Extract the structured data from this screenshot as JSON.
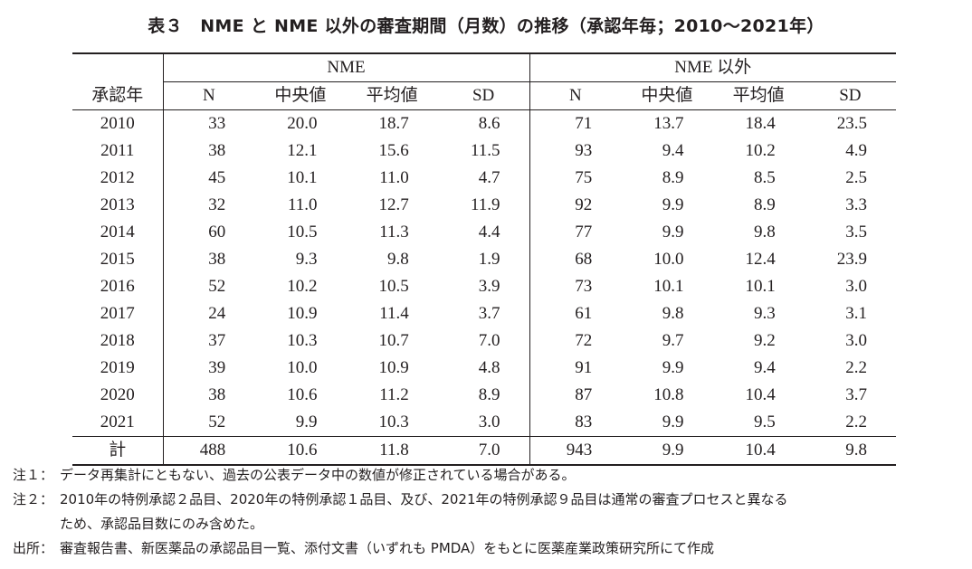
{
  "title": "表３　NME と NME 以外の審査期間（月数）の推移（承認年毎；2010〜2021年）",
  "table": {
    "year_header": "承認年",
    "groups": [
      "NME",
      "NME 以外"
    ],
    "columns": [
      "N",
      "中央値",
      "平均値",
      "SD"
    ],
    "rows": [
      {
        "year": "2010",
        "nme": [
          "33",
          "20.0",
          "18.7",
          "8.6"
        ],
        "other": [
          "71",
          "13.7",
          "18.4",
          "23.5"
        ]
      },
      {
        "year": "2011",
        "nme": [
          "38",
          "12.1",
          "15.6",
          "11.5"
        ],
        "other": [
          "93",
          "9.4",
          "10.2",
          "4.9"
        ]
      },
      {
        "year": "2012",
        "nme": [
          "45",
          "10.1",
          "11.0",
          "4.7"
        ],
        "other": [
          "75",
          "8.9",
          "8.5",
          "2.5"
        ]
      },
      {
        "year": "2013",
        "nme": [
          "32",
          "11.0",
          "12.7",
          "11.9"
        ],
        "other": [
          "92",
          "9.9",
          "8.9",
          "3.3"
        ]
      },
      {
        "year": "2014",
        "nme": [
          "60",
          "10.5",
          "11.3",
          "4.4"
        ],
        "other": [
          "77",
          "9.9",
          "9.8",
          "3.5"
        ]
      },
      {
        "year": "2015",
        "nme": [
          "38",
          "9.3",
          "9.8",
          "1.9"
        ],
        "other": [
          "68",
          "10.0",
          "12.4",
          "23.9"
        ]
      },
      {
        "year": "2016",
        "nme": [
          "52",
          "10.2",
          "10.5",
          "3.9"
        ],
        "other": [
          "73",
          "10.1",
          "10.1",
          "3.0"
        ]
      },
      {
        "year": "2017",
        "nme": [
          "24",
          "10.9",
          "11.4",
          "3.7"
        ],
        "other": [
          "61",
          "9.8",
          "9.3",
          "3.1"
        ]
      },
      {
        "year": "2018",
        "nme": [
          "37",
          "10.3",
          "10.7",
          "7.0"
        ],
        "other": [
          "72",
          "9.7",
          "9.2",
          "3.0"
        ]
      },
      {
        "year": "2019",
        "nme": [
          "39",
          "10.0",
          "10.9",
          "4.8"
        ],
        "other": [
          "91",
          "9.9",
          "9.4",
          "2.2"
        ]
      },
      {
        "year": "2020",
        "nme": [
          "38",
          "10.6",
          "11.2",
          "8.9"
        ],
        "other": [
          "87",
          "10.8",
          "10.4",
          "3.7"
        ]
      },
      {
        "year": "2021",
        "nme": [
          "52",
          "9.9",
          "10.3",
          "3.0"
        ],
        "other": [
          "83",
          "9.9",
          "9.5",
          "2.2"
        ]
      }
    ],
    "total": {
      "year": "計",
      "nme": [
        "488",
        "10.6",
        "11.8",
        "7.0"
      ],
      "other": [
        "943",
        "9.9",
        "10.4",
        "9.8"
      ]
    }
  },
  "notes": [
    {
      "label": "注１：",
      "lines": [
        "データ再集計にともない、過去の公表データ中の数値が修正されている場合がある。"
      ]
    },
    {
      "label": "注２：",
      "lines": [
        "2010年の特例承認２品目、2020年の特例承認１品目、及び、2021年の特例承認９品目は通常の審査プロセスと異なる",
        "ため、承認品目数にのみ含めた。"
      ]
    },
    {
      "label": "出所：",
      "lines": [
        "審査報告書、新医薬品の承認品目一覧、添付文書（いずれも PMDA）をもとに医薬産業政策研究所にて作成"
      ]
    }
  ]
}
